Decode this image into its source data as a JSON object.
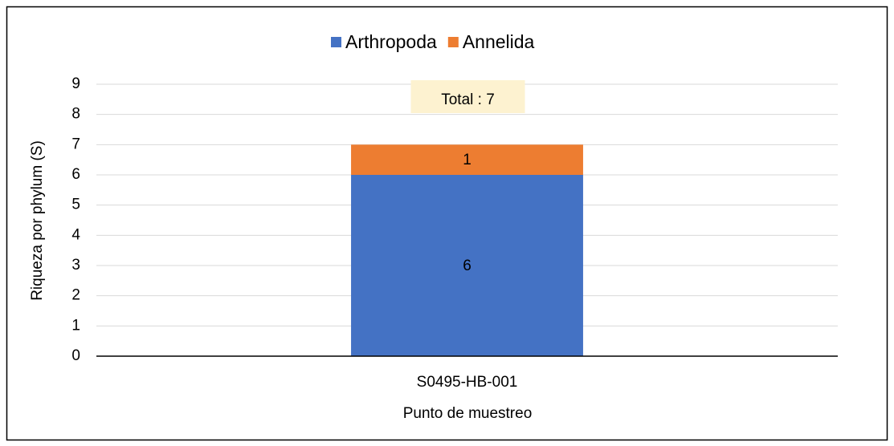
{
  "chart_data": {
    "type": "stacked_bar",
    "categories": [
      "S0495-HB-001"
    ],
    "series": [
      {
        "name": "Arthropoda",
        "color": "#4472c4",
        "values": [
          6
        ]
      },
      {
        "name": "Annelida",
        "color": "#ed7d31",
        "values": [
          1
        ]
      }
    ],
    "ylim": [
      0,
      9
    ],
    "yticks": [
      0,
      1,
      2,
      3,
      4,
      5,
      6,
      7,
      8,
      9
    ],
    "grid": true,
    "ylabel": "Riqueza por phylum  (S)",
    "xlabel": "Punto de muestreo",
    "annotation": "Total : 7",
    "legend": "top"
  }
}
